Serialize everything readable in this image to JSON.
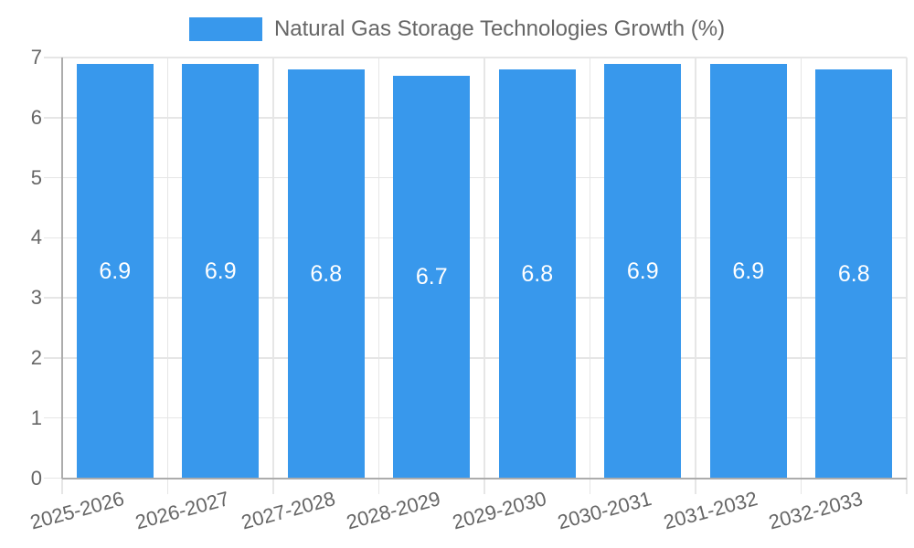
{
  "chart_data": {
    "type": "bar",
    "title": "Natural Gas Storage Technologies Growth (%)",
    "categories": [
      "2025-2026",
      "2026-2027",
      "2027-2028",
      "2028-2029",
      "2029-2030",
      "2030-2031",
      "2031-2032",
      "2032-2033"
    ],
    "values": [
      6.9,
      6.9,
      6.8,
      6.7,
      6.8,
      6.9,
      6.9,
      6.8
    ],
    "series": [
      {
        "name": "Natural Gas Storage Technologies Growth (%)",
        "values": [
          6.9,
          6.9,
          6.8,
          6.7,
          6.8,
          6.9,
          6.9,
          6.8
        ]
      }
    ],
    "xlabel": "",
    "ylabel": "",
    "ylim": [
      0,
      7
    ],
    "yticks": [
      0,
      1,
      2,
      3,
      4,
      5,
      6,
      7
    ],
    "grid": true,
    "legend_position": "top-center",
    "x_label_rotation_deg": -15,
    "colors": {
      "bar": "#3898EC",
      "grid": "#E6E6E6",
      "axis": "#ACACAC",
      "tick_text": "#666666",
      "value_label": "#FFFFFF",
      "background": "#FFFFFF"
    }
  }
}
